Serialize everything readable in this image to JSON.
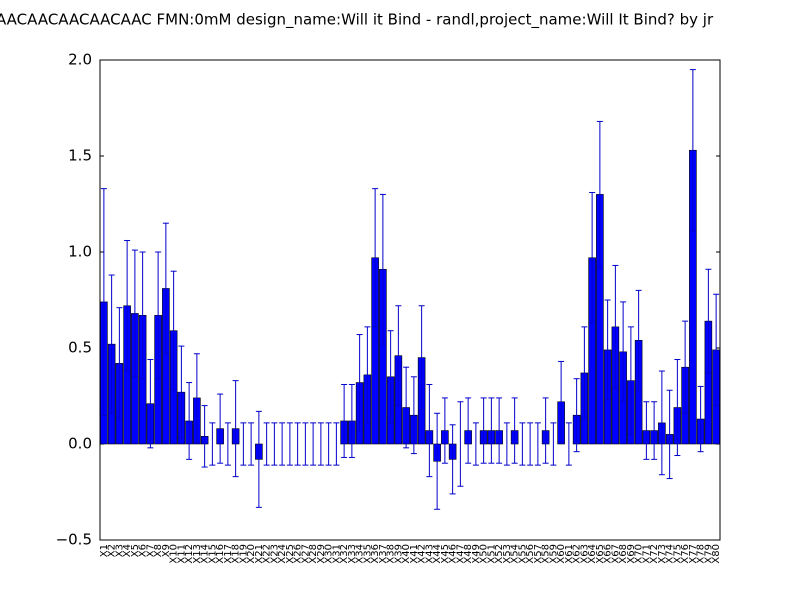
{
  "chart_data": {
    "type": "bar",
    "title": "AACAACAACAACAAC  FMN:0mM  design_name:Will it Bind - randl,project_name:Will It Bind? by jr",
    "categories": [
      "X1",
      "X2",
      "X3",
      "X4",
      "X5",
      "X6",
      "X7",
      "X8",
      "X9",
      "X10",
      "X11",
      "X12",
      "X13",
      "X14",
      "X15",
      "X16",
      "X17",
      "X18",
      "X19",
      "X20",
      "X21",
      "X22",
      "X23",
      "X24",
      "X25",
      "X26",
      "X27",
      "X28",
      "X29",
      "X30",
      "X31",
      "X32",
      "X33",
      "X34",
      "X35",
      "X36",
      "X37",
      "X38",
      "X39",
      "X40",
      "X41",
      "X42",
      "X43",
      "X44",
      "X45",
      "X46",
      "X47",
      "X48",
      "X49",
      "X50",
      "X51",
      "X52",
      "X53",
      "X54",
      "X55",
      "X56",
      "X57",
      "X58",
      "X59",
      "X60",
      "X61",
      "X62",
      "X63",
      "X64",
      "X65",
      "X66",
      "X67",
      "X68",
      "X69",
      "X70",
      "X71",
      "X72",
      "X73",
      "X74",
      "X75",
      "X76",
      "X77",
      "X78",
      "X79",
      "X80"
    ],
    "values": [
      0.74,
      0.52,
      0.42,
      0.72,
      0.68,
      0.67,
      0.21,
      0.67,
      0.81,
      0.59,
      0.27,
      0.12,
      0.24,
      0.04,
      0,
      0.08,
      0,
      0.08,
      0,
      0,
      -0.08,
      0,
      0,
      0,
      0,
      0,
      0,
      0,
      0,
      0,
      0,
      0.12,
      0.12,
      0.32,
      0.36,
      0.97,
      0.91,
      0.35,
      0.46,
      0.19,
      0.15,
      0.45,
      0.07,
      -0.09,
      0.07,
      -0.08,
      0,
      0.07,
      0,
      0.07,
      0.07,
      0.07,
      0,
      0.07,
      0,
      0,
      0,
      0.07,
      0,
      0.22,
      0,
      0.15,
      0.37,
      0.97,
      1.3,
      0.49,
      0.61,
      0.48,
      0.33,
      0.54,
      0.07,
      0.07,
      0.11,
      0.05,
      0.19,
      0.4,
      1.53,
      0.13,
      0.64,
      0.49
    ],
    "errors": [
      0.59,
      0.36,
      0.29,
      0.34,
      0.33,
      0.33,
      0.23,
      0.33,
      0.34,
      0.31,
      0.24,
      0.2,
      0.23,
      0.16,
      0.11,
      0.18,
      0.11,
      0.25,
      0.11,
      0.11,
      0.25,
      0.11,
      0.11,
      0.11,
      0.11,
      0.11,
      0.11,
      0.11,
      0.11,
      0.11,
      0.11,
      0.19,
      0.19,
      0.25,
      0.25,
      0.36,
      0.39,
      0.24,
      0.26,
      0.21,
      0.2,
      0.27,
      0.24,
      0.25,
      0.17,
      0.18,
      0.22,
      0.17,
      0.11,
      0.17,
      0.17,
      0.17,
      0.11,
      0.17,
      0.11,
      0.11,
      0.11,
      0.17,
      0.11,
      0.21,
      0.11,
      0.19,
      0.24,
      0.34,
      0.38,
      0.26,
      0.32,
      0.26,
      0.28,
      0.26,
      0.15,
      0.15,
      0.27,
      0.23,
      0.25,
      0.24,
      0.42,
      0.17,
      0.27,
      0.29
    ],
    "color": "#0000ff",
    "error_color": "#0000cc",
    "ylim": [
      -0.5,
      2.0
    ],
    "yticks": [
      {
        "value": -0.5,
        "label": "−0.5"
      },
      {
        "value": 0,
        "label": "0.0"
      },
      {
        "value": 0.5,
        "label": "0.5"
      },
      {
        "value": 1,
        "label": "1.0"
      },
      {
        "value": 1.5,
        "label": "1.5"
      },
      {
        "value": 2,
        "label": "2.0"
      }
    ],
    "grid": false
  }
}
